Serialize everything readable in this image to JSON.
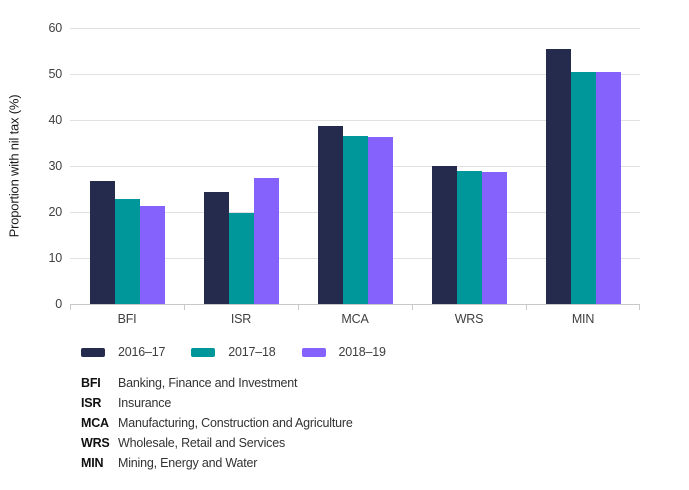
{
  "chart_data": {
    "type": "bar",
    "title": "",
    "xlabel": "",
    "ylabel": "Proportion with nil tax (%)",
    "ylim": [
      0,
      60
    ],
    "ytick_step": 10,
    "grid": "horizontal",
    "legend_position": "bottom",
    "categories": [
      "BFI",
      "ISR",
      "MCA",
      "WRS",
      "MIN"
    ],
    "series": [
      {
        "name": "2016–17",
        "color": "#252B4D",
        "values": [
          26.8,
          24.3,
          38.6,
          30.0,
          55.5
        ]
      },
      {
        "name": "2017–18",
        "color": "#00979B",
        "values": [
          22.9,
          19.8,
          36.6,
          28.9,
          50.5
        ]
      },
      {
        "name": "2018–19",
        "color": "#8562FC",
        "values": [
          21.4,
          27.3,
          36.2,
          28.7,
          50.4
        ]
      }
    ]
  },
  "colors": {
    "gridline": "#e1e1e1",
    "axis_line": "#c9c9c9",
    "tick_text": "#404040"
  },
  "footnotes": [
    {
      "abbr": "BFI",
      "label": "Banking, Finance and Investment"
    },
    {
      "abbr": "ISR",
      "label": "Insurance"
    },
    {
      "abbr": "MCA",
      "label": "Manufacturing, Construction and Agriculture"
    },
    {
      "abbr": "WRS",
      "label": "Wholesale, Retail and Services"
    },
    {
      "abbr": "MIN",
      "label": "Mining, Energy and Water"
    }
  ]
}
